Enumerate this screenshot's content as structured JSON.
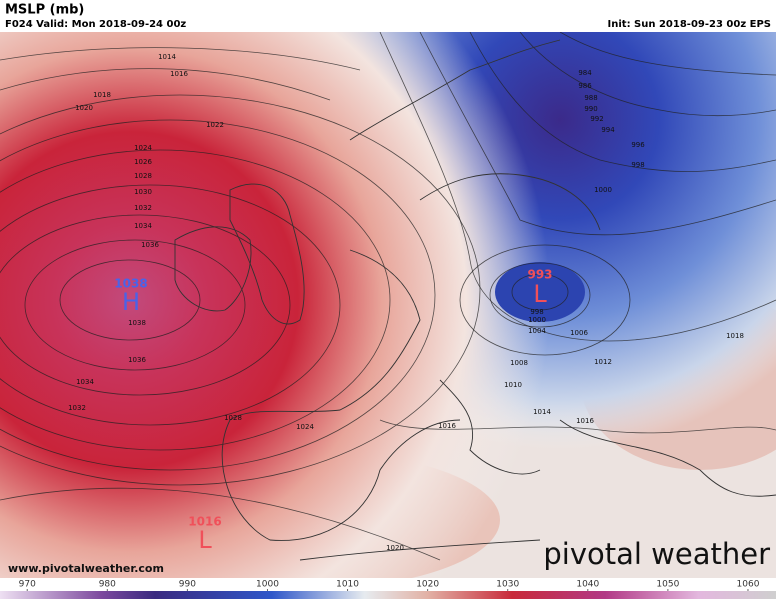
{
  "header": {
    "title": "MSLP (mb)",
    "valid": "F024 Valid: Mon 2018-09-24 00z",
    "init": "Init: Sun 2018-09-23 00z EPS"
  },
  "centers": [
    {
      "letter": "H",
      "value": 1038
    },
    {
      "letter": "L",
      "value": 993
    },
    {
      "letter": "L",
      "value": 1016
    }
  ],
  "isobar_labels": [
    1014,
    1016,
    1018,
    1020,
    1022,
    1024,
    1026,
    1028,
    1030,
    1032,
    1034,
    1036,
    1038,
    1036,
    1034,
    1032,
    1028,
    1024,
    984,
    986,
    988,
    990,
    992,
    994,
    996,
    998,
    1000,
    998,
    1000,
    1004,
    1006,
    1008,
    1010,
    1012,
    1014,
    1016,
    1016,
    1018,
    1020
  ],
  "credit": "www.pivotalweather.com",
  "logo": "pivotal weather",
  "colorbar": {
    "lim": [
      966.6,
      1063.5
    ],
    "ticks": [
      970,
      980,
      990,
      1000,
      1010,
      1020,
      1030,
      1040,
      1050,
      1060
    ]
  }
}
